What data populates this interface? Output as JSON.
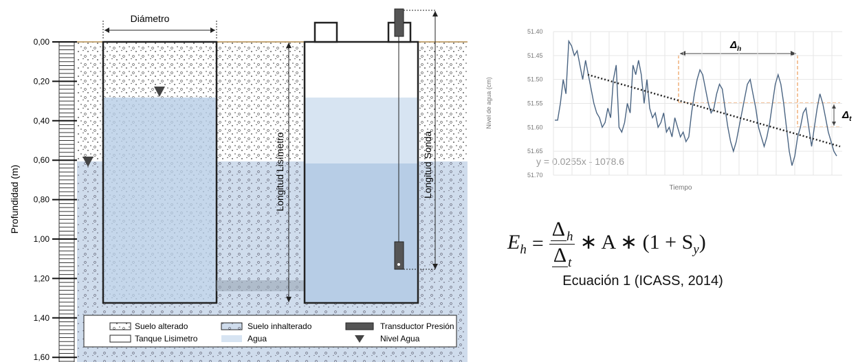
{
  "diagram": {
    "depth_axis": {
      "label": "Profundidad (m)",
      "ticks": [
        {
          "value": 0,
          "label": "0,00"
        },
        {
          "value": 0.2,
          "label": "0,20"
        },
        {
          "value": 0.4,
          "label": "0,40"
        },
        {
          "value": 0.6,
          "label": "0,60"
        },
        {
          "value": 0.8,
          "label": "0,80"
        },
        {
          "value": 1.0,
          "label": "1,00"
        },
        {
          "value": 1.2,
          "label": "1,20"
        },
        {
          "value": 1.4,
          "label": "1,40"
        },
        {
          "value": 1.6,
          "label": "1,60"
        }
      ]
    },
    "diameter_label": "Diámetro",
    "lysimeter_length_label": "Longitud Lisímetro",
    "probe_length_label": "Longitud Sonda",
    "legend": [
      "Suelo alterado",
      "Suelo inhalterado",
      "Transductor Presión",
      "Tanque Lisimetro",
      "Agua",
      "Nivel Agua"
    ]
  },
  "chart_data": {
    "type": "line",
    "ylabel": "Nivel de agua (cm)",
    "xlabel": "Tiempo",
    "ylim": [
      51.7,
      51.4
    ],
    "yticks": [
      {
        "value": 51.4,
        "label": "51.40"
      },
      {
        "value": 51.45,
        "label": "51.45"
      },
      {
        "value": 51.5,
        "label": "51.50"
      },
      {
        "value": 51.55,
        "label": "51.55"
      },
      {
        "value": 51.6,
        "label": "51.60"
      },
      {
        "value": 51.65,
        "label": "51.65"
      },
      {
        "value": 51.7,
        "label": "51.70"
      }
    ],
    "grid": true,
    "series": [
      {
        "color": "#4a6482",
        "values": [
          51.585,
          51.585,
          51.55,
          51.5,
          51.53,
          51.42,
          51.43,
          51.45,
          51.44,
          51.47,
          51.5,
          51.46,
          51.49,
          51.52,
          51.55,
          51.57,
          51.58,
          51.6,
          51.59,
          51.56,
          51.58,
          51.5,
          51.47,
          51.6,
          51.61,
          51.59,
          51.55,
          51.57,
          51.47,
          51.49,
          51.46,
          51.49,
          51.55,
          51.5,
          51.56,
          51.58,
          51.57,
          51.6,
          51.59,
          51.57,
          51.61,
          51.6,
          51.62,
          51.58,
          51.6,
          51.62,
          51.61,
          51.63,
          51.62,
          51.57,
          51.53,
          51.5,
          51.48,
          51.49,
          51.52,
          51.55,
          51.57,
          51.56,
          51.53,
          51.51,
          51.52,
          51.56,
          51.6,
          51.63,
          51.65,
          51.63,
          51.6,
          51.57,
          51.54,
          51.51,
          51.5,
          51.53,
          51.56,
          51.6,
          51.62,
          51.64,
          51.62,
          51.59,
          51.55,
          51.51,
          51.49,
          51.51,
          51.55,
          51.6,
          51.65,
          51.68,
          51.66,
          51.62,
          51.6,
          51.57,
          51.56,
          51.6,
          51.64,
          51.6,
          51.56,
          51.53,
          51.55,
          51.58,
          51.61,
          51.63,
          51.65,
          51.66
        ]
      }
    ],
    "trendline": {
      "label": "y = 0.0255x - 1078.6",
      "color": "#222",
      "values": [
        51.49,
        51.64
      ]
    },
    "annotations": [
      {
        "text": "Δ",
        "sub": "h"
      },
      {
        "text": "Δ",
        "sub": "t"
      }
    ]
  },
  "equation": {
    "lhs": "E",
    "lhs_sub": "h",
    "eq": "=",
    "num": "Δ",
    "num_sub": "h",
    "den": "Δ",
    "den_sub": "t",
    "rest": "∗ A ∗ (1 + S",
    "rest_sub": "y",
    "close": ")",
    "caption": "Ecuación 1 (ICASS, 2014)"
  }
}
